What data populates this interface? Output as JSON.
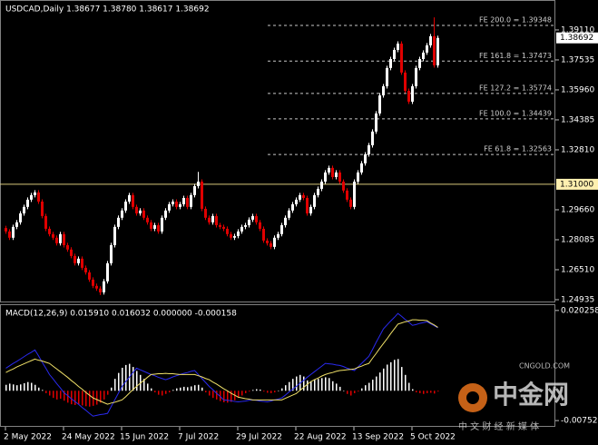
{
  "chart_data": {
    "type": "candlestick",
    "title": "USDCAD,Daily  1.38677 1.38780 1.38617 1.38692",
    "categories": [
      "2 May 2022",
      null,
      null,
      null,
      null,
      null,
      null,
      null,
      null,
      null,
      null,
      null,
      null,
      null,
      null,
      null,
      "24 May 2022",
      null,
      null,
      null,
      null,
      null,
      null,
      null,
      null,
      null,
      null,
      null,
      null,
      null,
      null,
      null,
      "15 Jun 2022",
      null,
      null,
      null,
      null,
      null,
      null,
      null,
      null,
      null,
      null,
      null,
      null,
      null,
      null,
      null,
      "7 Jul 2022",
      null,
      null,
      null,
      null,
      null,
      null,
      null,
      null,
      null,
      null,
      null,
      null,
      null,
      null,
      null,
      "29 Jul 2022",
      null,
      null,
      null,
      null,
      null,
      null,
      null,
      null,
      null,
      null,
      null,
      null,
      null,
      null,
      null,
      "22 Aug 2022",
      null,
      null,
      null,
      null,
      null,
      null,
      null,
      null,
      null,
      null,
      null,
      null,
      null,
      null,
      null,
      "13 Sep 2022",
      null,
      null,
      null,
      null,
      null,
      null,
      null,
      null,
      null,
      null,
      null,
      null,
      null,
      null,
      null,
      "5 Oct 2022",
      null,
      null,
      null,
      null,
      null,
      null,
      null
    ],
    "open": [
      1.287,
      1.2852,
      1.2819,
      1.2876,
      1.29,
      1.2947,
      1.2981,
      1.3019,
      1.3043,
      1.3057,
      1.3009,
      1.2933,
      1.2866,
      1.2838,
      1.2819,
      1.279,
      1.2838,
      1.278,
      1.2757,
      1.2723,
      1.2685,
      1.2709,
      1.2661,
      1.2637,
      1.2599,
      1.2566,
      1.2552,
      1.2532,
      1.259,
      1.2685,
      1.278,
      1.2876,
      1.2924,
      1.2962,
      1.3009,
      1.3043,
      1.2981,
      1.2947,
      1.2962,
      1.2924,
      1.29,
      1.2866,
      1.2885,
      1.2852,
      1.2924,
      1.2962,
      1.2995,
      1.3009,
      1.2981,
      1.2995,
      1.3028,
      1.2981,
      1.3043,
      1.309,
      1.3114,
      1.2971,
      1.2924,
      1.29,
      1.2933,
      1.2885,
      1.2876,
      1.2866,
      1.2838,
      1.2819,
      1.2828,
      1.2852,
      1.2876,
      1.2885,
      1.2914,
      1.2933,
      1.29,
      1.2866,
      1.2804,
      1.279,
      1.2771,
      1.2819,
      1.2838,
      1.2885,
      1.2924,
      1.2962,
      1.2995,
      1.3019,
      1.3043,
      1.3028,
      1.2947,
      1.2981,
      1.3043,
      1.3076,
      1.3114,
      1.3162,
      1.3186,
      1.3138,
      1.3162,
      1.3114,
      1.3067,
      1.3019,
      1.2981,
      1.3114,
      1.3162,
      1.321,
      1.3257,
      1.3305,
      1.3377,
      1.3472,
      1.3567,
      1.3615,
      1.3711,
      1.3758,
      1.3806,
      1.3839,
      1.3687,
      1.3591,
      1.3534,
      1.3615,
      1.3711,
      1.3758,
      1.3792,
      1.383,
      1.3878,
      1.3725
    ],
    "high": [
      1.2882,
      1.2864,
      1.2888,
      1.2912,
      1.2959,
      1.2993,
      1.3031,
      1.3055,
      1.3069,
      1.3069,
      1.3021,
      1.2945,
      1.2878,
      1.285,
      1.2831,
      1.285,
      1.285,
      1.2792,
      1.2769,
      1.2735,
      1.2721,
      1.2721,
      1.2673,
      1.2649,
      1.2611,
      1.2578,
      1.2564,
      1.2602,
      1.2697,
      1.2792,
      1.2888,
      1.2936,
      1.2974,
      1.3021,
      1.3055,
      1.3055,
      1.2993,
      1.2974,
      1.2974,
      1.2936,
      1.2912,
      1.2897,
      1.2897,
      1.2936,
      1.2974,
      1.3007,
      1.3021,
      1.3021,
      1.3007,
      1.304,
      1.304,
      1.3055,
      1.3102,
      1.3165,
      1.3126,
      1.2983,
      1.2936,
      1.2945,
      1.2945,
      1.2897,
      1.2888,
      1.2878,
      1.285,
      1.284,
      1.2864,
      1.2888,
      1.2897,
      1.2926,
      1.2945,
      1.2945,
      1.2912,
      1.2878,
      1.2816,
      1.2802,
      1.2831,
      1.285,
      1.2897,
      1.2936,
      1.2974,
      1.3007,
      1.3031,
      1.3055,
      1.3055,
      1.304,
      1.2993,
      1.3055,
      1.3088,
      1.3126,
      1.3174,
      1.3198,
      1.3198,
      1.3174,
      1.3174,
      1.3126,
      1.3079,
      1.3031,
      1.3126,
      1.3174,
      1.3222,
      1.3269,
      1.3317,
      1.3389,
      1.3484,
      1.3579,
      1.3627,
      1.3723,
      1.377,
      1.3818,
      1.3851,
      1.3851,
      1.3699,
      1.3603,
      1.3627,
      1.3723,
      1.377,
      1.3804,
      1.3842,
      1.389,
      1.3977,
      1.3881
    ],
    "low": [
      1.284,
      1.2807,
      1.2807,
      1.2864,
      1.2888,
      1.2935,
      1.2969,
      1.3007,
      1.3031,
      1.2997,
      1.2921,
      1.2854,
      1.2826,
      1.2807,
      1.2778,
      1.2778,
      1.2768,
      1.2745,
      1.2711,
      1.2673,
      1.2673,
      1.2649,
      1.2625,
      1.2587,
      1.2554,
      1.254,
      1.2518,
      1.252,
      1.2578,
      1.2673,
      1.2768,
      1.2864,
      1.2912,
      1.295,
      1.2997,
      1.2969,
      1.2935,
      1.2935,
      1.2912,
      1.2888,
      1.2854,
      1.2854,
      1.284,
      1.284,
      1.2912,
      1.295,
      1.2983,
      1.2969,
      1.2969,
      1.2983,
      1.2969,
      1.2969,
      1.3031,
      1.3078,
      1.2959,
      1.2912,
      1.2888,
      1.2888,
      1.2873,
      1.2864,
      1.2854,
      1.2826,
      1.2807,
      1.2807,
      1.2816,
      1.284,
      1.2864,
      1.2873,
      1.2902,
      1.2888,
      1.2854,
      1.2792,
      1.2778,
      1.2759,
      1.2759,
      1.2807,
      1.2826,
      1.2873,
      1.2912,
      1.295,
      1.2983,
      1.3007,
      1.3016,
      1.2935,
      1.2935,
      1.2969,
      1.3031,
      1.3064,
      1.3102,
      1.315,
      1.3126,
      1.3126,
      1.3102,
      1.3055,
      1.3007,
      1.2969,
      1.2969,
      1.3102,
      1.315,
      1.3198,
      1.3245,
      1.3293,
      1.3365,
      1.346,
      1.3555,
      1.3603,
      1.3699,
      1.3746,
      1.3794,
      1.3675,
      1.3579,
      1.3522,
      1.3522,
      1.3603,
      1.3699,
      1.3746,
      1.378,
      1.3818,
      1.3713,
      1.3713
    ],
    "close": [
      1.2852,
      1.2819,
      1.2876,
      1.29,
      1.2947,
      1.2981,
      1.3019,
      1.3043,
      1.3057,
      1.3009,
      1.2933,
      1.2866,
      1.2838,
      1.2819,
      1.279,
      1.2838,
      1.278,
      1.2757,
      1.2723,
      1.2685,
      1.2709,
      1.2661,
      1.2637,
      1.2599,
      1.2566,
      1.2552,
      1.2532,
      1.259,
      1.2685,
      1.278,
      1.2876,
      1.2924,
      1.2962,
      1.3009,
      1.3043,
      1.2981,
      1.2947,
      1.2962,
      1.2924,
      1.29,
      1.2866,
      1.2885,
      1.2852,
      1.2924,
      1.2962,
      1.2995,
      1.3009,
      1.2981,
      1.2995,
      1.3028,
      1.2981,
      1.3043,
      1.309,
      1.3114,
      1.2971,
      1.2924,
      1.29,
      1.2933,
      1.2885,
      1.2876,
      1.2866,
      1.2838,
      1.2819,
      1.2828,
      1.2852,
      1.2876,
      1.2885,
      1.2914,
      1.2933,
      1.29,
      1.2866,
      1.2804,
      1.279,
      1.2771,
      1.2819,
      1.2838,
      1.2885,
      1.2924,
      1.2962,
      1.2995,
      1.3019,
      1.3043,
      1.3028,
      1.2947,
      1.2981,
      1.3043,
      1.3076,
      1.3114,
      1.3162,
      1.3186,
      1.3138,
      1.3162,
      1.3114,
      1.3067,
      1.3019,
      1.2981,
      1.3114,
      1.3162,
      1.321,
      1.3257,
      1.3305,
      1.3377,
      1.3472,
      1.3567,
      1.3615,
      1.3711,
      1.3758,
      1.3806,
      1.3839,
      1.3687,
      1.3591,
      1.3534,
      1.3615,
      1.3711,
      1.3758,
      1.3792,
      1.383,
      1.3878,
      1.3725,
      1.3869
    ],
    "up_color": "#ffffff",
    "down_color": "#e00000",
    "ylim": [
      1.24791,
      1.4054
    ],
    "yticks": [
      {
        "value": 1.3911,
        "label": "1.39110"
      },
      1.37535,
      {
        "value": 1.3596,
        "label": "1.35960"
      },
      1.34385,
      {
        "value": 1.3281,
        "label": "1.32810"
      },
      {
        "value": 1.2966,
        "label": "1.29660"
      },
      1.28085,
      {
        "value": 1.2651,
        "label": "1.26510"
      },
      1.24935
    ],
    "hline": {
      "value": 1.31,
      "label": "1.31000",
      "color": "#d8c87a"
    },
    "current_price": {
      "value": 1.38692,
      "label": "1.38692"
    },
    "fe_levels": [
      {
        "value": 1.39348,
        "label": "FE 200.0 = 1.39348"
      },
      {
        "value": 1.37473,
        "label": "FE 161.8 = 1.37473"
      },
      {
        "value": 1.35774,
        "label": "FE 127.2 = 1.35774"
      },
      {
        "value": 1.34439,
        "label": "FE 100.0 = 1.34439"
      },
      {
        "value": 1.32563,
        "label": "FE 61.8 = 1.32563"
      }
    ],
    "indicator": {
      "type": "macd",
      "title": "MACD(12,26,9) 0.015910 0.016032 0.000000 -0.000158",
      "ylim": [
        -0.0091,
        0.0216
      ],
      "yticks": [
        0.020258,
        -0.007521
      ],
      "hist": {
        "up_color": "#ffffff",
        "down_color": "#e00000",
        "values": [
          0.0015,
          0.0018,
          0.0016,
          0.0014,
          0.0016,
          0.0019,
          0.0022,
          0.002,
          0.0015,
          0.0008,
          0.0002,
          -0.0006,
          -0.0012,
          -0.0018,
          -0.0022,
          -0.002,
          -0.0025,
          -0.003,
          -0.0034,
          -0.0036,
          -0.0034,
          -0.0037,
          -0.0039,
          -0.004,
          -0.0038,
          -0.0035,
          -0.003,
          -0.0022,
          -0.001,
          0.0008,
          0.003,
          0.0045,
          0.0058,
          0.0065,
          0.0068,
          0.006,
          0.005,
          0.004,
          0.003,
          0.0018,
          0.0006,
          -0.0004,
          -0.001,
          -0.0012,
          -0.0008,
          -0.0004,
          0.0002,
          0.0006,
          0.0008,
          0.001,
          0.0009,
          0.0011,
          0.0014,
          0.0015,
          0.0008,
          -0.0004,
          -0.0012,
          -0.0018,
          -0.0022,
          -0.0026,
          -0.0029,
          -0.003,
          -0.0028,
          -0.0024,
          -0.0018,
          -0.0012,
          -0.0006,
          -0.0002,
          0.0002,
          0.0004,
          0.0003,
          -0.0002,
          -0.0005,
          -0.0006,
          -0.0004,
          0.0,
          0.0006,
          0.0014,
          0.0022,
          0.003,
          0.0036,
          0.004,
          0.0036,
          0.0026,
          0.0024,
          0.0028,
          0.003,
          0.0032,
          0.0034,
          0.0032,
          0.0024,
          0.0018,
          0.001,
          0.0,
          -0.0008,
          -0.0012,
          -0.0006,
          -0.0002,
          0.0006,
          0.0014,
          0.002,
          0.0028,
          0.0036,
          0.0046,
          0.0056,
          0.0066,
          0.0072,
          0.0078,
          0.008,
          0.006,
          0.004,
          0.002,
          0.0004,
          -0.0004,
          -0.0006,
          -0.0008,
          -0.0006,
          -0.0005,
          -0.0007,
          -0.0002
        ]
      },
      "lines": [
        {
          "color": "#2a2af0",
          "values": [
            0.0057,
            0.0063,
            0.0069,
            0.0074,
            0.008,
            0.0086,
            0.0092,
            0.0097,
            0.0103,
            0.0088,
            0.0072,
            0.0057,
            0.0041,
            0.003,
            0.0018,
            0.0007,
            -0.0005,
            -0.0012,
            -0.002,
            -0.0027,
            -0.0034,
            -0.0042,
            -0.0049,
            -0.0057,
            -0.0064,
            -0.0062,
            -0.006,
            -0.0059,
            -0.0057,
            -0.004,
            -0.0023,
            -0.0006,
            0.0011,
            0.0023,
            0.0034,
            0.0046,
            0.0057,
            0.0053,
            0.0049,
            0.0045,
            0.0041,
            0.0038,
            0.0034,
            0.0031,
            0.0028,
            0.0031,
            0.0035,
            0.0038,
            0.0041,
            0.0044,
            0.0046,
            0.0049,
            0.0051,
            0.0041,
            0.0031,
            0.0021,
            0.0011,
            0.0003,
            -0.0006,
            -0.0014,
            -0.0023,
            -0.0024,
            -0.0025,
            -0.0027,
            -0.0028,
            -0.0027,
            -0.0026,
            -0.0024,
            -0.0023,
            -0.0024,
            -0.0026,
            -0.0027,
            -0.0028,
            -0.0026,
            -0.0023,
            -0.0021,
            -0.0018,
            -0.0011,
            -0.0003,
            0.0004,
            0.0011,
            0.0019,
            0.0026,
            0.0034,
            0.0041,
            0.0048,
            0.0055,
            0.0062,
            0.0069,
            0.0068,
            0.0067,
            0.0065,
            0.0064,
            0.0061,
            0.0057,
            0.0054,
            0.0051,
            0.006,
            0.0069,
            0.0078,
            0.0087,
            0.0104,
            0.0122,
            0.0139,
            0.0156,
            0.0166,
            0.0176,
            0.0185,
            0.0195,
            0.0188,
            0.018,
            0.0173,
            0.0165,
            0.0167,
            0.017,
            0.0172,
            0.0174,
            0.0169,
            0.0164,
            0.0159
          ]
        },
        {
          "color": "#f0e068",
          "values": [
            0.0046,
            0.0051,
            0.0055,
            0.006,
            0.0064,
            0.0068,
            0.0072,
            0.0076,
            0.008,
            0.0077,
            0.0075,
            0.0072,
            0.0069,
            0.0062,
            0.0055,
            0.0048,
            0.0041,
            0.0034,
            0.0026,
            0.0019,
            0.0011,
            0.0004,
            -0.0004,
            -0.0011,
            -0.0018,
            -0.0022,
            -0.0026,
            -0.003,
            -0.0034,
            -0.0031,
            -0.0029,
            -0.0026,
            -0.0023,
            -0.0015,
            -0.0006,
            0.0003,
            0.0011,
            0.0019,
            0.0026,
            0.0034,
            0.0041,
            0.0042,
            0.0043,
            0.0043,
            0.0044,
            0.0043,
            0.0043,
            0.0042,
            0.0041,
            0.0041,
            0.0041,
            0.0041,
            0.0041,
            0.0038,
            0.0035,
            0.0031,
            0.0028,
            0.0022,
            0.0017,
            0.0011,
            0.0005,
            0.0,
            -0.0006,
            -0.0011,
            -0.0016,
            -0.0018,
            -0.002,
            -0.0021,
            -0.0023,
            -0.0023,
            -0.0023,
            -0.0023,
            -0.0023,
            -0.0023,
            -0.0023,
            -0.0023,
            -0.0023,
            -0.0019,
            -0.0015,
            -0.0011,
            -0.0007,
            0.0001,
            0.0008,
            0.0016,
            0.0023,
            0.0028,
            0.0032,
            0.0037,
            0.0041,
            0.0044,
            0.0046,
            0.0049,
            0.0051,
            0.0052,
            0.0053,
            0.0054,
            0.0055,
            0.0059,
            0.0062,
            0.0066,
            0.0069,
            0.0082,
            0.0094,
            0.0107,
            0.0119,
            0.0131,
            0.0144,
            0.0156,
            0.0168,
            0.0171,
            0.0174,
            0.0176,
            0.0179,
            0.0179,
            0.0178,
            0.0178,
            0.0177,
            0.0171,
            0.0166,
            0.016
          ]
        }
      ]
    },
    "watermark": {
      "brand": "中金网",
      "site": "CNGOLD.COM",
      "slogan": "中 文 财 经 新 媒 体"
    }
  }
}
